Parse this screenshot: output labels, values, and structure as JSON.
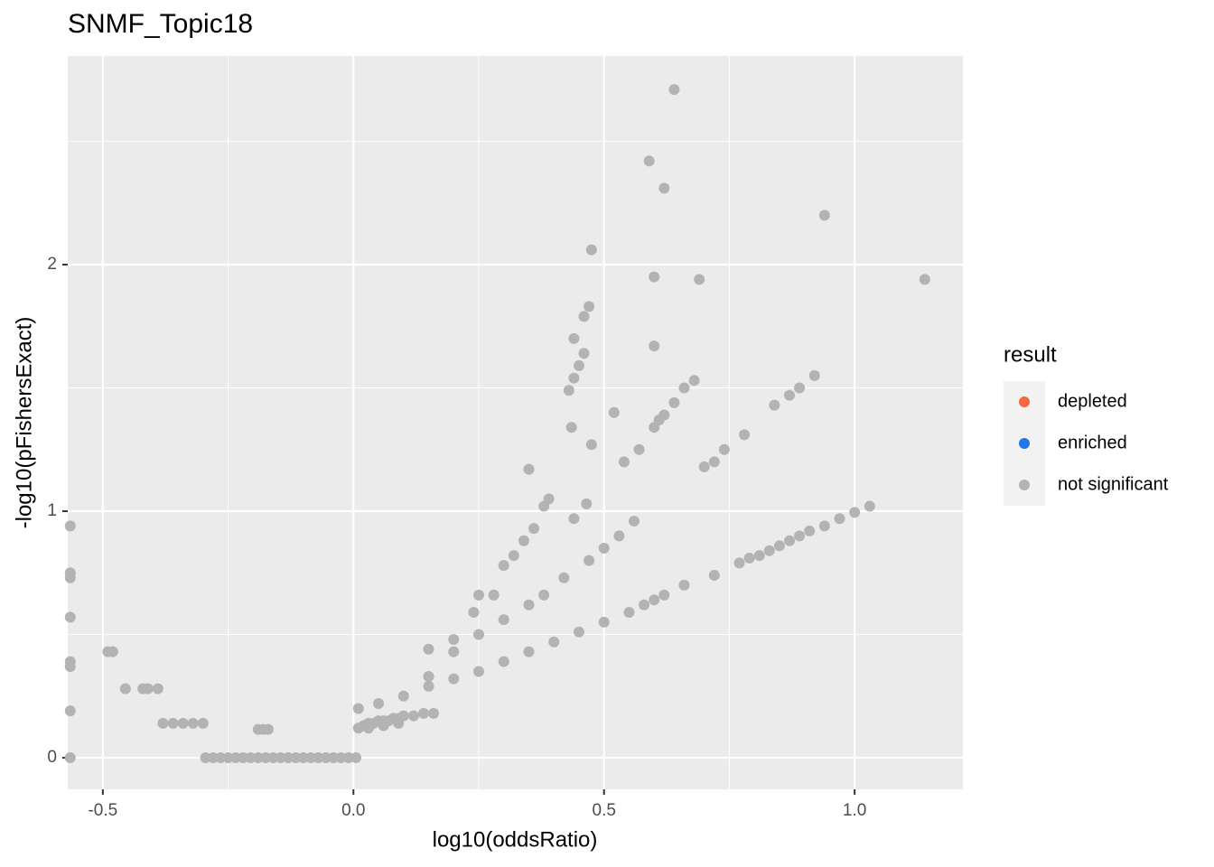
{
  "chart_data": {
    "type": "scatter",
    "title": "SNMF_Topic18",
    "x_label": "log10(oddsRatio)",
    "y_label": "-log10(pFishersExact)",
    "legend_title": "result",
    "legend": "right",
    "xlim": [
      -0.57,
      1.216
    ],
    "ylim": [
      -0.128,
      2.846
    ],
    "xticks": [
      -0.5,
      {
        "value": 0,
        "label": "0.0"
      },
      0.5,
      {
        "value": 1,
        "label": "1.0"
      }
    ],
    "yticks": [
      0,
      1,
      2
    ],
    "xminor": [
      -0.25,
      0.25,
      0.75
    ],
    "yminor": [
      0.5,
      1.5,
      2.5
    ],
    "grid": true,
    "series": [
      {
        "name": "depleted",
        "color": "#f4683f",
        "x": [],
        "values": []
      },
      {
        "name": "enriched",
        "color": "#2078ea",
        "x": [],
        "values": []
      },
      {
        "name": "not significant",
        "color": "#b3b3b3",
        "x": [
          -0.565,
          -0.565,
          -0.565,
          -0.565,
          -0.565,
          -0.565,
          -0.565,
          -0.565,
          -0.49,
          -0.48,
          -0.455,
          -0.42,
          -0.41,
          -0.39,
          -0.38,
          -0.36,
          -0.34,
          -0.32,
          -0.3,
          -0.19,
          -0.18,
          -0.17,
          -0.295,
          -0.28,
          -0.265,
          -0.25,
          -0.235,
          -0.22,
          -0.205,
          -0.19,
          -0.175,
          -0.16,
          -0.145,
          -0.13,
          -0.115,
          -0.1,
          -0.085,
          -0.07,
          -0.055,
          -0.04,
          -0.025,
          -0.01,
          0.005,
          0.01,
          0.05,
          0.1,
          0.15,
          0.2,
          0.25,
          0.3,
          0.35,
          0.4,
          0.45,
          0.5,
          0.55,
          0.58,
          0.6,
          0.62,
          0.66,
          0.72,
          0.77,
          0.79,
          0.81,
          0.83,
          0.85,
          0.87,
          0.89,
          0.91,
          0.94,
          0.97,
          1.0,
          1.03,
          0.01,
          0.02,
          0.03,
          0.04,
          0.05,
          0.06,
          0.07,
          0.08,
          0.09,
          0.1,
          0.12,
          0.14,
          0.16,
          0.03,
          0.06,
          0.09,
          0.15,
          0.2,
          0.25,
          0.3,
          0.35,
          0.38,
          0.42,
          0.47,
          0.5,
          0.53,
          0.56,
          0.15,
          0.2,
          0.24,
          0.25,
          0.28,
          0.3,
          0.32,
          0.34,
          0.36,
          0.38,
          0.39,
          0.35,
          0.43,
          0.44,
          0.45,
          0.46,
          0.44,
          0.46,
          0.47,
          0.435,
          0.475,
          0.465,
          0.44,
          0.52,
          0.54,
          0.57,
          0.6,
          0.61,
          0.62,
          0.64,
          0.66,
          0.68,
          0.7,
          0.72,
          0.74,
          0.78,
          0.84,
          0.87,
          0.89,
          0.92,
          0.475,
          0.6,
          0.6,
          0.69,
          0.59,
          0.62,
          0.64,
          0.94,
          1.14
        ],
        "values": [
          0.94,
          0.75,
          0.73,
          0.57,
          0.39,
          0.37,
          0.19,
          0.0,
          0.43,
          0.43,
          0.28,
          0.28,
          0.28,
          0.28,
          0.14,
          0.14,
          0.14,
          0.14,
          0.14,
          0.115,
          0.115,
          0.115,
          0,
          0,
          0,
          0,
          0,
          0,
          0,
          0,
          0,
          0,
          0,
          0,
          0,
          0,
          0,
          0,
          0,
          0,
          0,
          0,
          0,
          0.2,
          0.22,
          0.25,
          0.29,
          0.32,
          0.35,
          0.39,
          0.43,
          0.47,
          0.51,
          0.55,
          0.59,
          0.62,
          0.64,
          0.66,
          0.7,
          0.74,
          0.79,
          0.81,
          0.82,
          0.84,
          0.86,
          0.88,
          0.9,
          0.92,
          0.94,
          0.97,
          0.995,
          1.02,
          0.12,
          0.13,
          0.14,
          0.14,
          0.15,
          0.15,
          0.15,
          0.16,
          0.16,
          0.17,
          0.17,
          0.18,
          0.18,
          0.12,
          0.13,
          0.14,
          0.33,
          0.43,
          0.5,
          0.56,
          0.62,
          0.66,
          0.73,
          0.8,
          0.85,
          0.9,
          0.96,
          0.44,
          0.48,
          0.59,
          0.66,
          0.66,
          0.78,
          0.82,
          0.88,
          0.93,
          1.02,
          1.05,
          1.17,
          1.49,
          1.54,
          1.59,
          1.64,
          1.7,
          1.79,
          1.83,
          1.34,
          1.27,
          1.03,
          0.97,
          1.4,
          1.2,
          1.25,
          1.34,
          1.37,
          1.39,
          1.44,
          1.5,
          1.53,
          1.18,
          1.2,
          1.25,
          1.31,
          1.43,
          1.47,
          1.5,
          1.55,
          2.06,
          1.95,
          1.67,
          1.94,
          2.42,
          2.31,
          2.71,
          2.2,
          1.94
        ]
      }
    ]
  }
}
